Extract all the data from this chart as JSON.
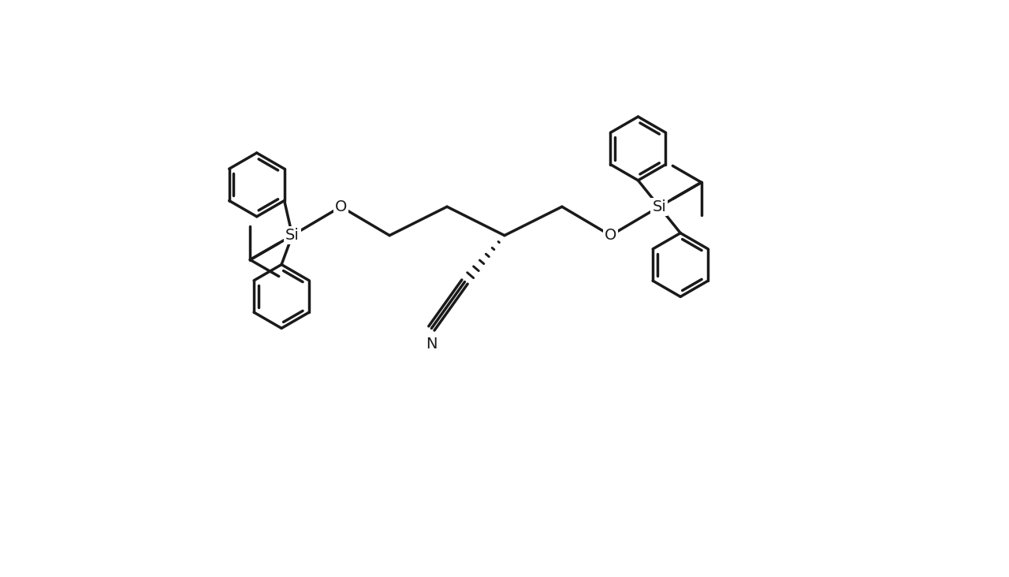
{
  "background_color": "#ffffff",
  "line_color": "#1a1a1a",
  "line_width": 2.5,
  "font_size_labels": 14,
  "figure_width": 12.8,
  "figure_height": 7.32,
  "xlim": [
    -0.5,
    14.5
  ],
  "ylim": [
    -4.5,
    8.5
  ]
}
